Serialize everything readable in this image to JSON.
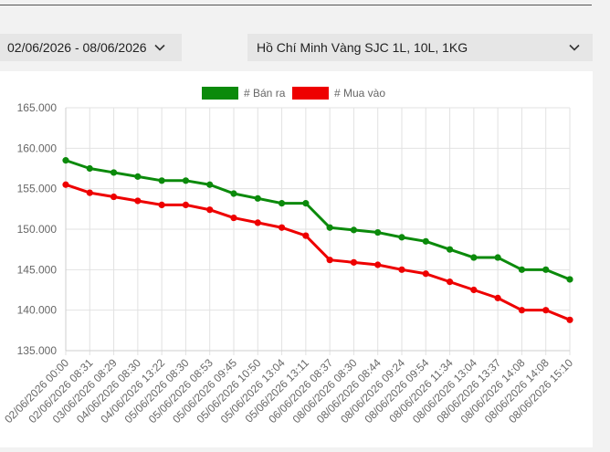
{
  "filters": {
    "date_range": "02/06/2026 - 08/06/2026",
    "gold_type": "Hồ Chí Minh Vàng SJC 1L, 10L, 1KG"
  },
  "icons": {
    "date_chevron": "chevron-down-icon",
    "gold_chevron": "chevron-down-icon"
  },
  "chart_data": {
    "type": "line",
    "legend_position": "top",
    "grid": true,
    "ylim": [
      135000,
      165000
    ],
    "y_ticks": [
      "135.000",
      "140.000",
      "145.000",
      "150.000",
      "155.000",
      "160.000",
      "165.000"
    ],
    "categories": [
      "02/06/2026 00:00",
      "02/06/2026 08:31",
      "03/06/2026 08:29",
      "04/06/2026 08:30",
      "04/06/2026 13:22",
      "05/06/2026 08:30",
      "05/06/2026 08:53",
      "05/06/2026 09:45",
      "05/06/2026 10:50",
      "05/06/2026 13:04",
      "05/06/2026 13:11",
      "06/06/2026 08:37",
      "08/06/2026 08:30",
      "08/06/2026 08:44",
      "08/06/2026 09:24",
      "08/06/2026 09:54",
      "08/06/2026 11:34",
      "08/06/2026 13:04",
      "08/06/2026 13:37",
      "08/06/2026 14:08",
      "08/06/2026 14:08",
      "08/06/2026 15:10"
    ],
    "series": [
      {
        "name": "# Bán ra",
        "color": "#0b8a0b",
        "values": [
          158500,
          157500,
          157000,
          156500,
          156000,
          156000,
          155500,
          154400,
          153800,
          153200,
          153200,
          150200,
          149900,
          149600,
          149000,
          148500,
          147500,
          146500,
          146500,
          145000,
          145000,
          143800
        ]
      },
      {
        "name": "# Mua vào",
        "color": "#ee0000",
        "values": [
          155500,
          154500,
          154000,
          153500,
          153000,
          153000,
          152400,
          151400,
          150800,
          150200,
          149200,
          146200,
          145900,
          145600,
          145000,
          144500,
          143500,
          142500,
          141500,
          140000,
          140000,
          138800
        ]
      }
    ]
  }
}
